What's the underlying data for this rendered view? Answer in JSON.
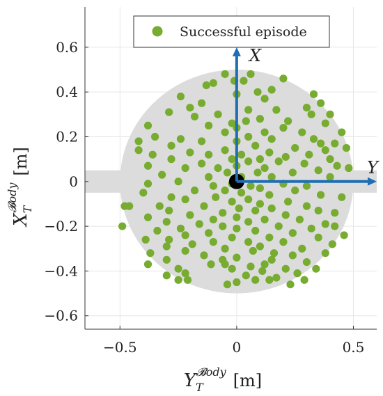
{
  "chart_data": {
    "type": "scatter",
    "xlabel": {
      "main": "Y",
      "sub": "T",
      "sup": "𝓑ody",
      "unit": "[m]"
    },
    "ylabel": {
      "main": "X",
      "sub": "T",
      "sup": "𝓑ody",
      "unit": "[m]"
    },
    "xlim": [
      -0.65,
      0.6
    ],
    "ylim": [
      -0.66,
      0.78
    ],
    "xticks": [
      -0.5,
      0,
      0.5
    ],
    "xtick_labels": [
      "−0.5",
      "0",
      "0.5"
    ],
    "yticks": [
      -0.6,
      -0.4,
      -0.2,
      0,
      0.2,
      0.4,
      0.6
    ],
    "ytick_labels": [
      "−0.6",
      "−0.4",
      "−0.2",
      "0",
      "0.2",
      "0.4",
      "0.6"
    ],
    "grid": true,
    "legend_position": "top-right",
    "workspace": {
      "radius": 0.5,
      "band_halfwidth": 0.05,
      "color": "#dcdcdc"
    },
    "origin_marker": {
      "x": 0,
      "y": 0,
      "color": "#000000"
    },
    "frame_axes": [
      {
        "label": "X",
        "dx": 0,
        "dy": 0.6,
        "color": "#1f6eb4"
      },
      {
        "label": "Y",
        "dx": 0.6,
        "dy": 0,
        "color": "#1f6eb4"
      }
    ],
    "series": [
      {
        "name": "Successful episode",
        "color": "#77ac30",
        "points": [
          [
            -0.05,
            0.48
          ],
          [
            0.06,
            0.48
          ],
          [
            -0.01,
            0.45
          ],
          [
            0.03,
            0.45
          ],
          [
            0.2,
            0.46
          ],
          [
            -0.1,
            0.44
          ],
          [
            -0.13,
            0.43
          ],
          [
            0.15,
            0.41
          ],
          [
            0.09,
            0.4
          ],
          [
            0.33,
            0.39
          ],
          [
            -0.24,
            0.38
          ],
          [
            0.0,
            0.39
          ],
          [
            0.12,
            0.37
          ],
          [
            0.36,
            0.35
          ],
          [
            -0.15,
            0.35
          ],
          [
            0.3,
            0.33
          ],
          [
            -0.2,
            0.33
          ],
          [
            0.05,
            0.32
          ],
          [
            -0.29,
            0.31
          ],
          [
            0.17,
            0.32
          ],
          [
            -0.18,
            0.29
          ],
          [
            0.1,
            0.28
          ],
          [
            0.32,
            0.3
          ],
          [
            0.4,
            0.3
          ],
          [
            -0.08,
            0.3
          ],
          [
            0.04,
            0.27
          ],
          [
            -0.02,
            0.26
          ],
          [
            0.22,
            0.27
          ],
          [
            0.38,
            0.26
          ],
          [
            0.2,
            0.24
          ],
          [
            -0.38,
            0.25
          ],
          [
            -0.12,
            0.25
          ],
          [
            0.0,
            0.24
          ],
          [
            -0.05,
            0.22
          ],
          [
            0.12,
            0.22
          ],
          [
            0.28,
            0.22
          ],
          [
            0.45,
            0.22
          ],
          [
            -0.35,
            0.2
          ],
          [
            0.05,
            0.2
          ],
          [
            -0.24,
            0.19
          ],
          [
            0.15,
            0.19
          ],
          [
            0.33,
            0.19
          ],
          [
            -0.42,
            0.18
          ],
          [
            -0.15,
            0.18
          ],
          [
            0.0,
            0.18
          ],
          [
            0.36,
            0.17
          ],
          [
            0.42,
            0.17
          ],
          [
            -0.28,
            0.16
          ],
          [
            0.08,
            0.16
          ],
          [
            0.25,
            0.15
          ],
          [
            -0.05,
            0.14
          ],
          [
            0.47,
            0.15
          ],
          [
            -0.2,
            0.13
          ],
          [
            0.38,
            0.14
          ],
          [
            0.14,
            0.13
          ],
          [
            -0.42,
            0.14
          ],
          [
            -0.36,
            0.12
          ],
          [
            0.02,
            0.12
          ],
          [
            0.31,
            0.12
          ],
          [
            -0.12,
            0.12
          ],
          [
            -0.28,
            0.1
          ],
          [
            0.21,
            0.11
          ],
          [
            -0.02,
            0.1
          ],
          [
            0.4,
            0.1
          ],
          [
            0.1,
            0.1
          ],
          [
            -0.15,
            0.08
          ],
          [
            0.05,
            0.09
          ],
          [
            0.18,
            0.09
          ],
          [
            -0.38,
            0.07
          ],
          [
            0.29,
            0.08
          ],
          [
            0.0,
            0.07
          ],
          [
            -0.08,
            0.06
          ],
          [
            0.12,
            0.06
          ],
          [
            0.43,
            0.07
          ],
          [
            -0.22,
            0.06
          ],
          [
            -0.04,
            0.04
          ],
          [
            0.09,
            0.04
          ],
          [
            0.24,
            0.04
          ],
          [
            0.35,
            0.05
          ],
          [
            -0.32,
            0.03
          ],
          [
            0.48,
            0.06
          ],
          [
            0.02,
            0.02
          ],
          [
            -0.12,
            0.02
          ],
          [
            0.15,
            0.02
          ],
          [
            0.4,
            0.02
          ],
          [
            -0.25,
            0.0
          ],
          [
            -0.02,
            -0.01
          ],
          [
            0.06,
            -0.02
          ],
          [
            0.2,
            -0.01
          ],
          [
            -0.38,
            -0.01
          ],
          [
            0.3,
            -0.02
          ],
          [
            -0.1,
            -0.02
          ],
          [
            0.1,
            -0.03
          ],
          [
            -0.05,
            -0.04
          ],
          [
            0.02,
            -0.05
          ],
          [
            -0.18,
            -0.04
          ],
          [
            0.25,
            -0.04
          ],
          [
            -0.4,
            -0.05
          ],
          [
            0.36,
            -0.06
          ],
          [
            0.14,
            -0.06
          ],
          [
            -0.28,
            -0.07
          ],
          [
            -0.09,
            -0.07
          ],
          [
            0.05,
            -0.08
          ],
          [
            0.45,
            -0.07
          ],
          [
            -0.22,
            -0.08
          ],
          [
            -0.02,
            -0.09
          ],
          [
            0.22,
            -0.09
          ],
          [
            0.1,
            -0.1
          ],
          [
            -0.33,
            -0.11
          ],
          [
            0.3,
            -0.11
          ],
          [
            -0.48,
            -0.11
          ],
          [
            -0.46,
            -0.11
          ],
          [
            -0.14,
            -0.11
          ],
          [
            0.01,
            -0.12
          ],
          [
            0.15,
            -0.12
          ],
          [
            -0.29,
            -0.13
          ],
          [
            0.08,
            -0.13
          ],
          [
            -0.06,
            -0.14
          ],
          [
            0.35,
            -0.13
          ],
          [
            0.42,
            -0.14
          ],
          [
            -0.2,
            -0.15
          ],
          [
            0.21,
            -0.15
          ],
          [
            -0.38,
            -0.16
          ],
          [
            0.0,
            -0.16
          ],
          [
            -0.1,
            -0.17
          ],
          [
            0.12,
            -0.17
          ],
          [
            0.27,
            -0.17
          ],
          [
            -0.3,
            -0.18
          ],
          [
            0.05,
            -0.18
          ],
          [
            -0.49,
            -0.2
          ],
          [
            -0.16,
            -0.19
          ],
          [
            0.38,
            -0.19
          ],
          [
            -0.06,
            -0.2
          ],
          [
            0.18,
            -0.2
          ],
          [
            0.32,
            -0.21
          ],
          [
            -0.24,
            -0.21
          ],
          [
            0.0,
            -0.21
          ],
          [
            0.42,
            -0.2
          ],
          [
            -0.34,
            -0.22
          ],
          [
            0.08,
            -0.22
          ],
          [
            -0.12,
            -0.23
          ],
          [
            0.24,
            -0.23
          ],
          [
            -0.22,
            -0.24
          ],
          [
            0.46,
            -0.24
          ],
          [
            -0.02,
            -0.25
          ],
          [
            0.14,
            -0.25
          ],
          [
            0.35,
            -0.25
          ],
          [
            -0.39,
            -0.26
          ],
          [
            -0.29,
            -0.26
          ],
          [
            0.05,
            -0.27
          ],
          [
            -0.1,
            -0.27
          ],
          [
            0.2,
            -0.27
          ],
          [
            -0.19,
            -0.28
          ],
          [
            0.41,
            -0.28
          ],
          [
            -0.3,
            -0.29
          ],
          [
            0.1,
            -0.29
          ],
          [
            0.28,
            -0.3
          ],
          [
            -0.05,
            -0.3
          ],
          [
            0.07,
            -0.31
          ],
          [
            -0.22,
            -0.31
          ],
          [
            0.16,
            -0.32
          ],
          [
            -0.37,
            -0.32
          ],
          [
            0.38,
            -0.32
          ],
          [
            -0.14,
            -0.33
          ],
          [
            0.24,
            -0.33
          ],
          [
            0.0,
            -0.34
          ],
          [
            -0.06,
            -0.35
          ],
          [
            0.15,
            -0.35
          ],
          [
            -0.3,
            -0.35
          ],
          [
            0.3,
            -0.36
          ],
          [
            0.12,
            -0.37
          ],
          [
            -0.38,
            -0.37
          ],
          [
            -0.11,
            -0.37
          ],
          [
            -0.05,
            -0.37
          ],
          [
            0.06,
            -0.38
          ],
          [
            -0.25,
            -0.39
          ],
          [
            0.21,
            -0.39
          ],
          [
            0.34,
            -0.39
          ],
          [
            -0.02,
            -0.39
          ],
          [
            0.11,
            -0.4
          ],
          [
            -0.22,
            -0.41
          ],
          [
            0.26,
            -0.41
          ],
          [
            -0.3,
            -0.42
          ],
          [
            0.04,
            -0.42
          ],
          [
            0.17,
            -0.43
          ],
          [
            -0.21,
            -0.44
          ],
          [
            0.29,
            -0.44
          ],
          [
            0.14,
            -0.44
          ],
          [
            0.0,
            -0.45
          ],
          [
            -0.04,
            -0.46
          ],
          [
            0.23,
            -0.46
          ],
          [
            -0.25,
            -0.44
          ],
          [
            0.08,
            -0.44
          ]
        ]
      }
    ]
  }
}
